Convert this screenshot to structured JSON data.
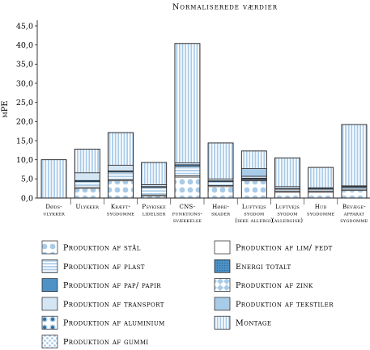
{
  "chart_data": {
    "type": "bar",
    "stacked": true,
    "title": "Normaliserede værdier",
    "ylabel": "mPE",
    "xlabel": "",
    "ylim": [
      0,
      45
    ],
    "yticks": [
      "0,0",
      "5,0",
      "10,0",
      "15,0",
      "20,0",
      "25,0",
      "30,0",
      "35,0",
      "40,0",
      "45,0"
    ],
    "ytick_values": [
      0,
      5,
      10,
      15,
      20,
      25,
      30,
      35,
      40,
      45
    ],
    "grid": false,
    "legend_position": "bottom",
    "categories": [
      [
        "Døds-",
        "ulykker"
      ],
      [
        "Ulykker"
      ],
      [
        "Kræft-",
        "sygdomme"
      ],
      [
        "Psykiske",
        "lidelser"
      ],
      [
        "CNS-",
        "funktions-",
        "svækkelse"
      ],
      [
        "Høre-",
        "skader"
      ],
      [
        "Luftvejs",
        "sygdom",
        "(ikke allergi)"
      ],
      [
        "Luftvejs",
        "sygdom",
        "(allergisk)"
      ],
      [
        "Hud",
        "sygdomme"
      ],
      [
        "Bevæge-",
        "apparat",
        "sygdomme"
      ]
    ],
    "series": [
      {
        "name": "Produktion af stål",
        "pattern": "dots-large",
        "values": [
          0,
          2.5,
          4.5,
          0.5,
          5.5,
          3.0,
          4.5,
          1.5,
          1.5,
          2.0
        ]
      },
      {
        "name": "Produktion af lim/ fedt",
        "pattern": "white",
        "values": [
          0,
          0.3,
          0.3,
          0.3,
          0.3,
          0.3,
          0.2,
          0.3,
          0.3,
          0.3
        ]
      },
      {
        "name": "Produktion af plast",
        "pattern": "hstripes",
        "values": [
          0,
          1.5,
          2.0,
          2.0,
          2.5,
          1.0,
          0.3,
          0.5,
          0.5,
          0.5
        ]
      },
      {
        "name": "Energi totalt",
        "pattern": "dark-dots",
        "values": [
          0,
          0.3,
          0.3,
          0.2,
          0.4,
          0.2,
          0.2,
          0.2,
          0.2,
          0.2
        ]
      },
      {
        "name": "Produktion af pap/ papir",
        "pattern": "solid-mid",
        "values": [
          0,
          0,
          0,
          0,
          0,
          0,
          0,
          0,
          0,
          0
        ]
      },
      {
        "name": "Produktion af zink",
        "pattern": "checker",
        "values": [
          0,
          0,
          0,
          0,
          0,
          0,
          0,
          0,
          0,
          0
        ]
      },
      {
        "name": "Produktion af transport",
        "pattern": "solid-light",
        "values": [
          0,
          2.0,
          1.5,
          0.5,
          0.5,
          0.5,
          0.5,
          0.5,
          0.2,
          0.2
        ]
      },
      {
        "name": "Produktion af tekstiler",
        "pattern": "solid-blue",
        "values": [
          0,
          0,
          0,
          0,
          0,
          0,
          2.0,
          0,
          0,
          0
        ]
      },
      {
        "name": "Produktion af aluminium",
        "pattern": "rings",
        "values": [
          0,
          0,
          0,
          0,
          0,
          0,
          0,
          0,
          0,
          0
        ]
      },
      {
        "name": "Produktion af gummi",
        "pattern": "dots-small",
        "values": [
          0,
          0,
          0,
          0,
          0,
          0,
          0,
          0,
          0,
          0
        ]
      },
      {
        "name": "Montage",
        "pattern": "vstripes",
        "values": [
          10.0,
          6.2,
          8.5,
          5.8,
          31.2,
          9.4,
          4.6,
          7.5,
          5.3,
          16.0
        ]
      }
    ]
  },
  "legend": {
    "left": [
      {
        "label": "Produktion af stål",
        "pattern": "dots-large"
      },
      {
        "label": "Produktion af plast",
        "pattern": "hstripes"
      },
      {
        "label": "Produktion af pap/ papir",
        "pattern": "solid-mid"
      },
      {
        "label": "Produktion af transport",
        "pattern": "solid-light"
      },
      {
        "label": "Produktion af aluminium",
        "pattern": "rings"
      },
      {
        "label": "Produktion af gummi",
        "pattern": "dots-small"
      }
    ],
    "right": [
      {
        "label": "Produktion af lim/ fedt",
        "pattern": "white"
      },
      {
        "label": "Energi totalt",
        "pattern": "dark-dots"
      },
      {
        "label": "Produktion af zink",
        "pattern": "checker"
      },
      {
        "label": "Produktion af tekstiler",
        "pattern": "solid-blue"
      },
      {
        "label": "Montage",
        "pattern": "vstripes"
      }
    ]
  },
  "colors": {
    "pattern_blue": "#a8cbe8",
    "mid_blue": "#4f93c6",
    "dark_blue": "#2d6fa3",
    "light_fill": "#d4e6f4",
    "axis": "#231f20"
  }
}
